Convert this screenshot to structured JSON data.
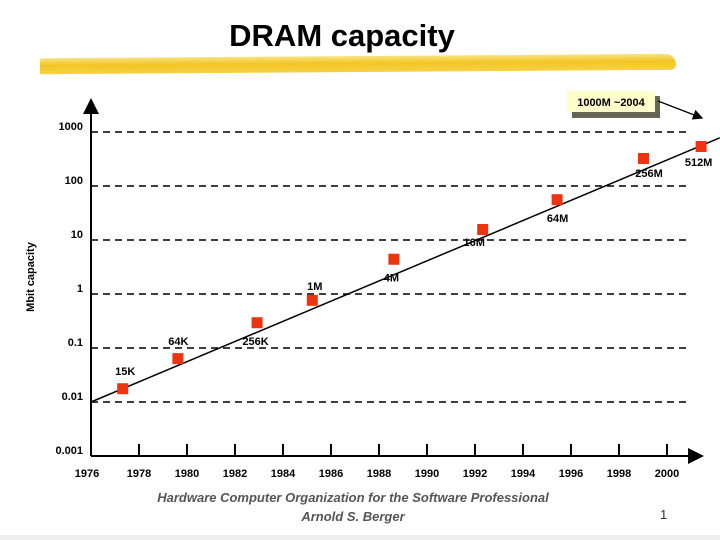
{
  "title": "DRAM capacity",
  "footer": {
    "line1": "Hardware Computer Organization for the Software Professional",
    "line2": "Arnold S. Berger",
    "page_number": "1"
  },
  "colors": {
    "marker": "#ee3311",
    "highlight": "#f2c21a",
    "callout_bg": "#ffffcc",
    "callout_shadow": "#666655"
  },
  "chart_data": {
    "type": "scatter",
    "title": "DRAM capacity",
    "xlabel": "",
    "ylabel": "Mbit capacity",
    "yscale": "log",
    "xlim": [
      1976,
      2002
    ],
    "ylim": [
      0.001,
      1000
    ],
    "grid": "horizontal dashed",
    "x_ticks": [
      "1976",
      "1978",
      "1980",
      "1982",
      "1984",
      "1986",
      "1988",
      "1990",
      "1992",
      "1994",
      "1996",
      "1998",
      "2000"
    ],
    "y_ticks": [
      "0.001",
      "0.01",
      "0.1",
      "1",
      "10",
      "100",
      "1000"
    ],
    "points": [
      {
        "label": "15K",
        "x": 1977.3,
        "y": 0.018
      },
      {
        "label": "64K",
        "x": 1979.6,
        "y": 0.065
      },
      {
        "label": "256K",
        "x": 1982.9,
        "y": 0.3
      },
      {
        "label": "1M",
        "x": 1985.2,
        "y": 0.78
      },
      {
        "label": "4M",
        "x": 1988.6,
        "y": 4.5
      },
      {
        "label": "16M",
        "x": 1992.3,
        "y": 16
      },
      {
        "label": "64M",
        "x": 1995.4,
        "y": 57
      },
      {
        "label": "256M",
        "x": 1999.0,
        "y": 330
      },
      {
        "label": "512M",
        "x": 2001.4,
        "y": 550
      }
    ],
    "trend_line": {
      "x": [
        1976,
        2002.2
      ],
      "y": [
        0.01,
        780
      ]
    },
    "annotation": "1000M ~2004"
  }
}
